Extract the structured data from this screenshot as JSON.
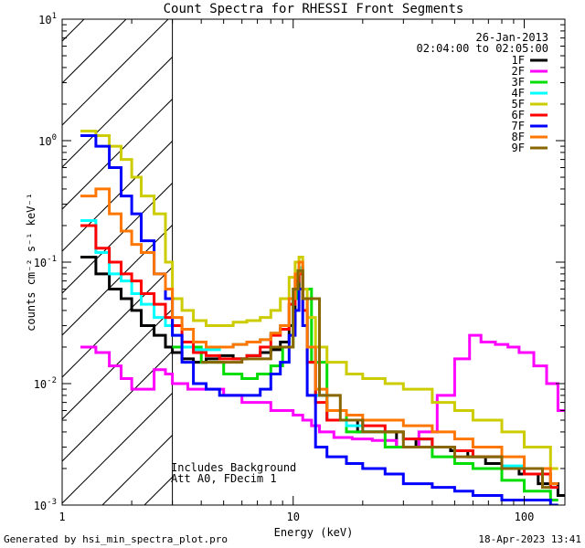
{
  "footer": {
    "generated_by": "Generated by hsi_min_spectra_plot.pro",
    "timestamp": "18-Apr-2023 13:41"
  },
  "chart_data": {
    "type": "line",
    "title": "Count Spectra for RHESSI Front Segments",
    "xlabel": "Energy (keV)",
    "ylabel": "counts cm⁻² s⁻¹ keV⁻¹",
    "x_scale": "log",
    "y_scale": "log",
    "xlim": [
      1,
      150
    ],
    "ylim": [
      0.001,
      10
    ],
    "x_ticks": [
      {
        "value": 1,
        "label": "1"
      },
      {
        "value": 10,
        "label": "10"
      },
      {
        "value": 100,
        "label": "100"
      }
    ],
    "y_ticks": [
      {
        "value": 10,
        "base": "10",
        "exp": "1"
      },
      {
        "value": 1,
        "base": "10",
        "exp": "0"
      },
      {
        "value": 0.1,
        "base": "10",
        "exp": "-1"
      },
      {
        "value": 0.01,
        "base": "10",
        "exp": "-2"
      },
      {
        "value": 0.001,
        "base": "10",
        "exp": "-3"
      }
    ],
    "date": "26-Jan-2013",
    "time_range": "02:04:00 to 02:05:00",
    "annotations": [
      "Includes Background",
      "Att A0, FDecim 1"
    ],
    "hatched_region_upper_kev": 3,
    "series": [
      {
        "name": "1F",
        "color": "#000000",
        "x": [
          1.2,
          1.4,
          1.6,
          1.8,
          2.0,
          2.2,
          2.5,
          2.8,
          3.0,
          3.3,
          3.7,
          4.2,
          4.8,
          5.5,
          6.3,
          7.2,
          8.0,
          8.8,
          9.6,
          10.2,
          10.6,
          11.0,
          11.5,
          12.5,
          14,
          16,
          19,
          23,
          28,
          34,
          40,
          48,
          57,
          68,
          80,
          95,
          115,
          140
        ],
        "values": [
          0.11,
          0.08,
          0.06,
          0.05,
          0.04,
          0.03,
          0.025,
          0.02,
          0.018,
          0.016,
          0.015,
          0.016,
          0.017,
          0.016,
          0.017,
          0.018,
          0.019,
          0.022,
          0.03,
          0.06,
          0.09,
          0.05,
          0.02,
          0.008,
          0.005,
          0.005,
          0.004,
          0.004,
          0.003,
          0.0035,
          0.003,
          0.0028,
          0.0025,
          0.0022,
          0.002,
          0.0018,
          0.0015,
          0.0012
        ]
      },
      {
        "name": "2F",
        "color": "#ff00ff",
        "x": [
          1.2,
          1.4,
          1.6,
          1.8,
          2.0,
          2.2,
          2.5,
          2.8,
          3.0,
          3.5,
          4.0,
          5.0,
          6.0,
          7.0,
          8.0,
          9.0,
          10.0,
          11.0,
          12.0,
          13.0,
          15.0,
          18.0,
          22.0,
          28.0,
          35.0,
          42.0,
          50.0,
          58.0,
          65.0,
          75.0,
          85.0,
          95.0,
          110.0,
          125.0,
          140.0
        ],
        "values": [
          0.02,
          0.018,
          0.014,
          0.011,
          0.009,
          0.009,
          0.013,
          0.012,
          0.01,
          0.009,
          0.009,
          0.008,
          0.007,
          0.007,
          0.006,
          0.006,
          0.0055,
          0.005,
          0.0045,
          0.004,
          0.0036,
          0.0035,
          0.0034,
          0.003,
          0.004,
          0.008,
          0.016,
          0.025,
          0.022,
          0.021,
          0.02,
          0.018,
          0.014,
          0.01,
          0.006
        ]
      },
      {
        "name": "3F",
        "color": "#00dd00",
        "x": [
          3,
          4,
          5,
          6,
          7,
          8,
          9,
          10,
          10.5,
          11,
          12,
          14,
          17,
          20,
          25,
          30,
          40,
          50,
          60,
          80,
          100,
          130
        ],
        "values": [
          0.02,
          0.015,
          0.012,
          0.011,
          0.012,
          0.014,
          0.02,
          0.05,
          0.085,
          0.06,
          0.015,
          0.006,
          0.004,
          0.004,
          0.003,
          0.003,
          0.0025,
          0.0022,
          0.002,
          0.0016,
          0.0013,
          0.0011
        ]
      },
      {
        "name": "4F",
        "color": "#00ffff",
        "x": [
          1.2,
          1.4,
          1.6,
          1.8,
          2.0,
          2.2,
          2.5,
          2.8,
          3.0,
          3.3,
          3.7,
          4.2,
          4.8,
          5.5,
          6.3,
          7.2,
          8.0,
          8.8,
          9.6,
          10.2,
          10.6,
          11.0,
          11.5,
          12.5,
          14,
          17,
          20,
          25,
          30,
          40,
          50,
          60,
          80,
          100,
          130
        ],
        "values": [
          0.22,
          0.12,
          0.08,
          0.07,
          0.055,
          0.045,
          0.035,
          0.03,
          0.025,
          0.02,
          0.019,
          0.019,
          0.02,
          0.021,
          0.022,
          0.023,
          0.026,
          0.03,
          0.045,
          0.07,
          0.09,
          0.05,
          0.02,
          0.008,
          0.005,
          0.0045,
          0.004,
          0.004,
          0.0035,
          0.003,
          0.0028,
          0.0025,
          0.0021,
          0.0018,
          0.0014
        ]
      },
      {
        "name": "5F",
        "color": "#cccc00",
        "x": [
          1.2,
          1.4,
          1.6,
          1.8,
          2.0,
          2.2,
          2.5,
          2.8,
          3.0,
          3.3,
          3.7,
          4.2,
          4.8,
          5.5,
          6.3,
          7.2,
          8.0,
          8.8,
          9.6,
          10.2,
          10.6,
          11.0,
          11.5,
          12.5,
          14,
          17,
          20,
          25,
          30,
          40,
          50,
          60,
          80,
          100,
          130
        ],
        "values": [
          1.2,
          1.1,
          0.9,
          0.7,
          0.5,
          0.35,
          0.25,
          0.1,
          0.05,
          0.04,
          0.033,
          0.03,
          0.03,
          0.032,
          0.033,
          0.035,
          0.04,
          0.05,
          0.075,
          0.1,
          0.11,
          0.06,
          0.035,
          0.02,
          0.015,
          0.012,
          0.011,
          0.01,
          0.009,
          0.007,
          0.006,
          0.005,
          0.004,
          0.003,
          0.002
        ]
      },
      {
        "name": "6F",
        "color": "#ff0000",
        "x": [
          1.2,
          1.4,
          1.6,
          1.8,
          2.0,
          2.2,
          2.5,
          2.8,
          3.0,
          3.3,
          3.7,
          4.2,
          4.8,
          5.5,
          6.3,
          7.2,
          8.0,
          8.8,
          9.6,
          10.2,
          10.6,
          11.0,
          11.5,
          12.5,
          14,
          17,
          20,
          25,
          30,
          40,
          50,
          60,
          80,
          100,
          130
        ],
        "values": [
          0.2,
          0.13,
          0.1,
          0.08,
          0.07,
          0.055,
          0.045,
          0.035,
          0.03,
          0.022,
          0.018,
          0.017,
          0.016,
          0.016,
          0.017,
          0.02,
          0.025,
          0.028,
          0.045,
          0.07,
          0.08,
          0.04,
          0.015,
          0.007,
          0.005,
          0.005,
          0.0045,
          0.004,
          0.0035,
          0.003,
          0.0028,
          0.0025,
          0.002,
          0.0018,
          0.0014
        ]
      },
      {
        "name": "7F",
        "color": "#0000ff",
        "x": [
          1.2,
          1.4,
          1.6,
          1.8,
          2.0,
          2.2,
          2.5,
          2.8,
          3.0,
          3.3,
          3.7,
          4.2,
          4.8,
          5.5,
          6.3,
          7.2,
          8.0,
          8.8,
          9.6,
          10.2,
          10.6,
          11.0,
          11.5,
          12.5,
          14,
          17,
          20,
          25,
          30,
          40,
          50,
          60,
          80,
          100,
          130
        ],
        "values": [
          1.1,
          0.9,
          0.6,
          0.35,
          0.25,
          0.15,
          0.08,
          0.05,
          0.025,
          0.015,
          0.01,
          0.009,
          0.008,
          0.008,
          0.008,
          0.009,
          0.012,
          0.015,
          0.025,
          0.04,
          0.06,
          0.03,
          0.008,
          0.003,
          0.0025,
          0.0022,
          0.002,
          0.0018,
          0.0015,
          0.0014,
          0.0013,
          0.0012,
          0.0011,
          0.0011,
          0.001
        ]
      },
      {
        "name": "8F",
        "color": "#ff7700",
        "x": [
          1.2,
          1.4,
          1.6,
          1.8,
          2.0,
          2.2,
          2.5,
          2.8,
          3.0,
          3.3,
          3.7,
          4.2,
          4.8,
          5.5,
          6.3,
          7.2,
          8.0,
          8.8,
          9.6,
          10.2,
          10.6,
          11.0,
          11.5,
          12.5,
          14,
          17,
          20,
          25,
          30,
          40,
          50,
          60,
          80,
          100,
          130
        ],
        "values": [
          0.35,
          0.4,
          0.25,
          0.18,
          0.14,
          0.12,
          0.08,
          0.06,
          0.035,
          0.028,
          0.022,
          0.02,
          0.02,
          0.021,
          0.022,
          0.023,
          0.026,
          0.03,
          0.05,
          0.08,
          0.1,
          0.05,
          0.02,
          0.009,
          0.006,
          0.0055,
          0.005,
          0.005,
          0.0045,
          0.004,
          0.0035,
          0.003,
          0.0025,
          0.002,
          0.0015
        ]
      },
      {
        "name": "9F",
        "color": "#886600",
        "x": [
          4,
          6,
          8,
          10,
          10.5,
          11,
          13,
          16,
          20,
          30,
          50,
          80,
          120
        ],
        "values": [
          0.015,
          0.016,
          0.02,
          0.06,
          0.085,
          0.05,
          0.008,
          0.005,
          0.004,
          0.003,
          0.0025,
          0.002,
          0.0014
        ]
      }
    ]
  }
}
